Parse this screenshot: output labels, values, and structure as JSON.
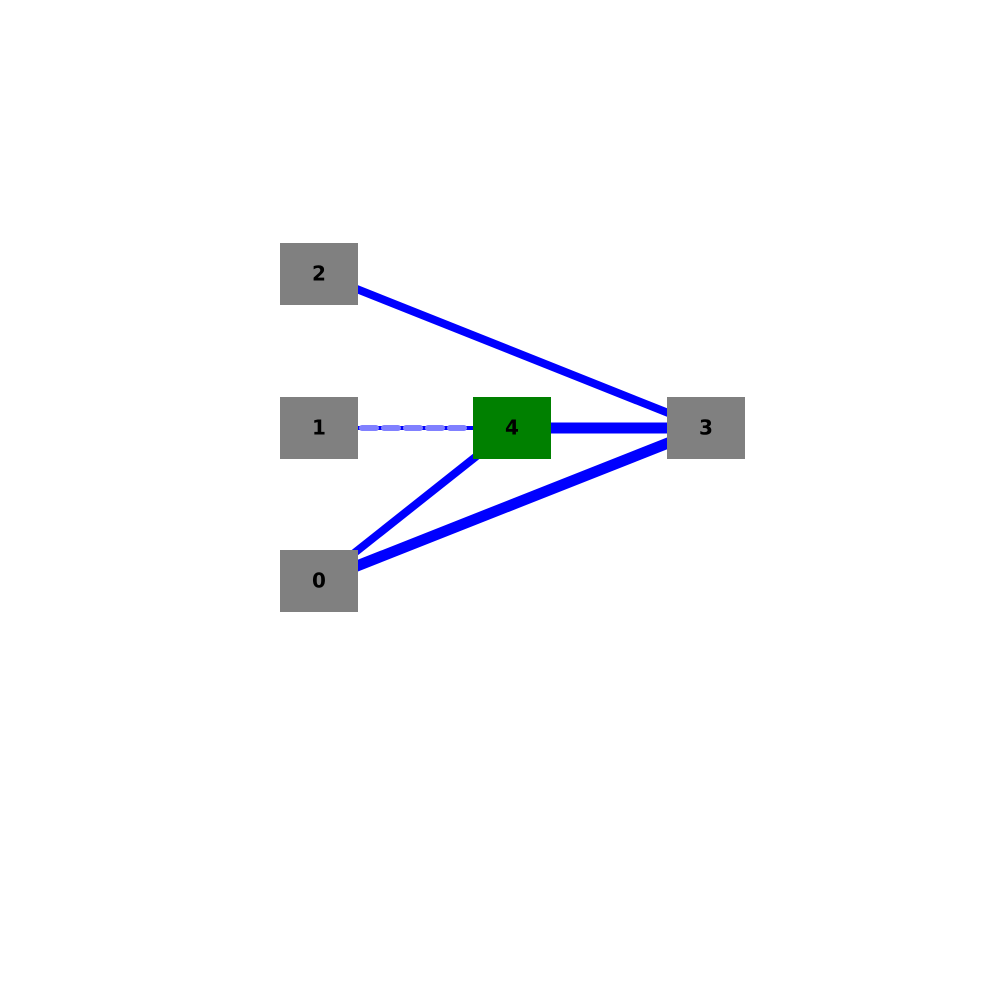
{
  "colors": {
    "background": "#ffffff",
    "edge": "#0000ff",
    "dashed_overlay": "#8080ff",
    "node_default": "#808080",
    "node_highlight": "#008000"
  },
  "nodes": [
    {
      "id": "0",
      "label": "0",
      "highlighted": false
    },
    {
      "id": "1",
      "label": "1",
      "highlighted": false
    },
    {
      "id": "2",
      "label": "2",
      "highlighted": false
    },
    {
      "id": "3",
      "label": "3",
      "highlighted": false
    },
    {
      "id": "4",
      "label": "4",
      "highlighted": true
    }
  ],
  "edges": [
    {
      "source": "2",
      "target": "3",
      "weight": "medium",
      "style": "solid"
    },
    {
      "source": "1",
      "target": "4",
      "weight": "thin",
      "style": "dashed"
    },
    {
      "source": "4",
      "target": "3",
      "weight": "thick",
      "style": "solid"
    },
    {
      "source": "0",
      "target": "4",
      "weight": "medium",
      "style": "solid"
    },
    {
      "source": "0",
      "target": "3",
      "weight": "thick",
      "style": "solid"
    }
  ]
}
